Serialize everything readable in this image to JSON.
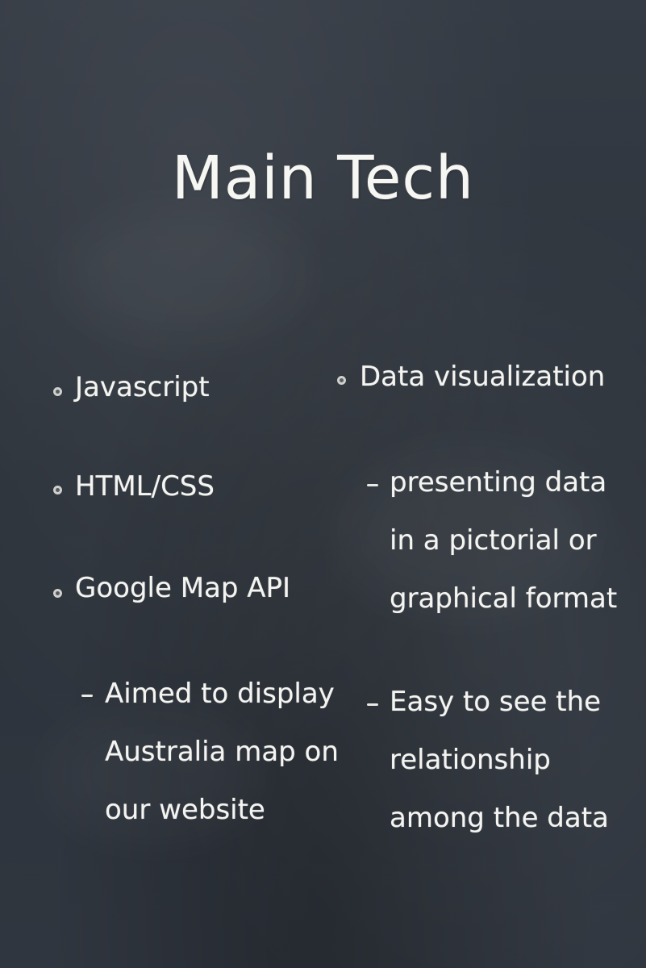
{
  "slide": {
    "title": "Main Tech",
    "left_column": {
      "bullets": [
        "Javascript",
        "HTML/CSS",
        "Google Map API"
      ],
      "sub_points": [
        {
          "lines": [
            "Aimed to display",
            "Australia map on",
            "our website"
          ]
        }
      ]
    },
    "right_column": {
      "bullets": [
        "Data visualization"
      ],
      "sub_points": [
        {
          "lines": [
            "presenting data",
            "in a pictorial or",
            "graphical format"
          ]
        },
        {
          "lines": [
            "Easy to see the",
            "relationship",
            "among the data"
          ]
        }
      ]
    }
  }
}
